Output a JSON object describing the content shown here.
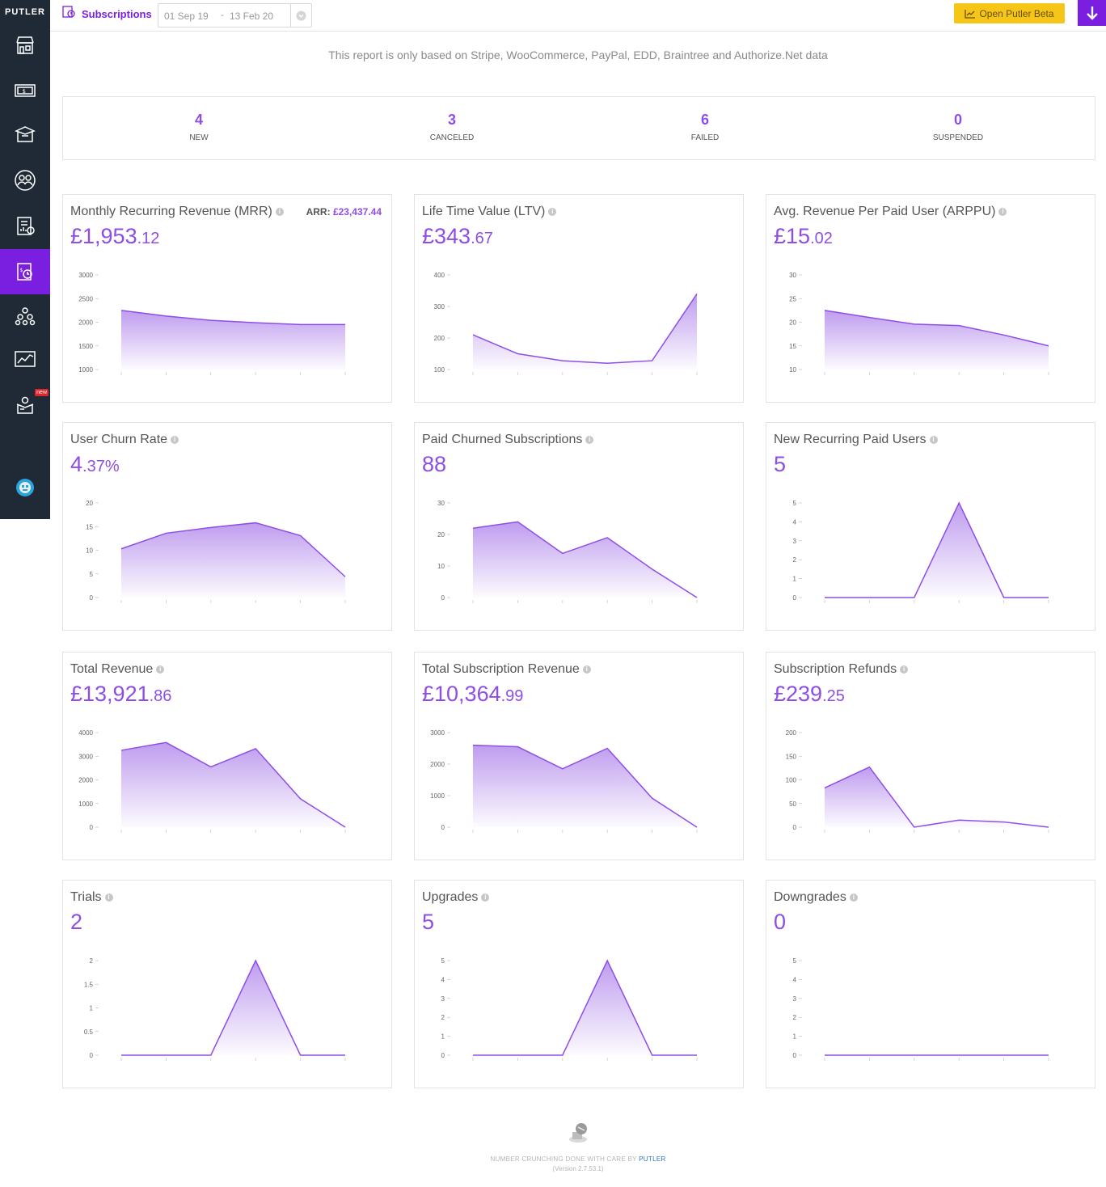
{
  "sidebar": {
    "brand": "PUTLER",
    "items": [
      {
        "icon": "store-icon"
      },
      {
        "icon": "money-icon"
      },
      {
        "icon": "box-icon"
      },
      {
        "icon": "customers-icon"
      },
      {
        "icon": "report-icon"
      },
      {
        "icon": "subscriptions-icon",
        "active": true
      },
      {
        "icon": "affiliates-icon"
      },
      {
        "icon": "insights-icon"
      },
      {
        "icon": "apps-icon",
        "badge": "new"
      }
    ],
    "accent": "#7a1fe0",
    "background": "#1f2a36"
  },
  "topbar": {
    "title": "Subscriptions",
    "date_from": "01 Sep 19",
    "date_sep": "-",
    "date_to": "13 Feb 20",
    "beta_label": "Open Putler Beta"
  },
  "notice": "This report is only based on Stripe, WooCommerce, PayPal, EDD, Braintree and Authorize.Net data",
  "stats": [
    {
      "value": "4",
      "label": "NEW"
    },
    {
      "value": "3",
      "label": "CANCELED"
    },
    {
      "value": "6",
      "label": "FAILED"
    },
    {
      "value": "0",
      "label": "SUSPENDED"
    }
  ],
  "chart_data": [
    {
      "type": "area",
      "title": "Monthly Recurring Revenue (MRR)",
      "value_main": "£1,953",
      "value_dec": ".12",
      "extra_label": "ARR:",
      "extra_value": "£23,437.44",
      "yticks": [
        "3000",
        "2500",
        "2000",
        "1500",
        "1000"
      ],
      "ylim": [
        1000,
        3000
      ],
      "values": [
        2250,
        2130,
        2040,
        1990,
        1950,
        1950
      ]
    },
    {
      "type": "area",
      "title": "Life Time Value (LTV)",
      "value_main": "£343",
      "value_dec": ".67",
      "yticks": [
        "400",
        "300",
        "200",
        "100"
      ],
      "ylim": [
        100,
        400
      ],
      "values": [
        210,
        150,
        128,
        120,
        128,
        340
      ]
    },
    {
      "type": "area",
      "title": "Avg. Revenue Per Paid User (ARPPU)",
      "value_main": "£15",
      "value_dec": ".02",
      "yticks": [
        "30",
        "25",
        "20",
        "15",
        "10"
      ],
      "ylim": [
        10,
        30
      ],
      "values": [
        22.5,
        21,
        19.6,
        19.3,
        17.3,
        15
      ]
    },
    {
      "type": "area",
      "title": "User Churn Rate",
      "value_main": "4",
      "value_dec": ".37%",
      "yticks": [
        "20",
        "15",
        "10",
        "5",
        "0"
      ],
      "ylim": [
        0,
        20
      ],
      "values": [
        10.3,
        13.6,
        14.8,
        15.8,
        13.1,
        4.4
      ]
    },
    {
      "type": "area",
      "title": "Paid Churned Subscriptions",
      "value_main": "88",
      "value_dec": "",
      "yticks": [
        "30",
        "20",
        "10",
        "0"
      ],
      "ylim": [
        0,
        30
      ],
      "values": [
        22,
        24,
        14,
        19,
        9,
        0
      ]
    },
    {
      "type": "area",
      "title": "New Recurring Paid Users",
      "value_main": "5",
      "value_dec": "",
      "yticks": [
        "5",
        "4",
        "3",
        "2",
        "1",
        "0"
      ],
      "ylim": [
        0,
        5
      ],
      "values": [
        0,
        0,
        0,
        5,
        0,
        0
      ]
    },
    {
      "type": "area",
      "title": "Total Revenue",
      "value_main": "£13,921",
      "value_dec": ".86",
      "yticks": [
        "4000",
        "3000",
        "2000",
        "1000",
        "0"
      ],
      "ylim": [
        0,
        4000
      ],
      "values": [
        3250,
        3580,
        2550,
        3320,
        1200,
        0
      ]
    },
    {
      "type": "area",
      "title": "Total Subscription Revenue",
      "value_main": "£10,364",
      "value_dec": ".99",
      "yticks": [
        "3000",
        "2000",
        "1000",
        "0"
      ],
      "ylim": [
        0,
        3000
      ],
      "values": [
        2600,
        2550,
        1850,
        2500,
        920,
        0
      ]
    },
    {
      "type": "area",
      "title": "Subscription Refunds",
      "value_main": "£239",
      "value_dec": ".25",
      "yticks": [
        "200",
        "150",
        "100",
        "50",
        "0"
      ],
      "ylim": [
        0,
        200
      ],
      "values": [
        83,
        127,
        0,
        15,
        11,
        0
      ]
    },
    {
      "type": "area",
      "title": "Trials",
      "value_main": "2",
      "value_dec": "",
      "yticks": [
        "2",
        "1.5",
        "1",
        "0.5",
        "0"
      ],
      "ylim": [
        0,
        2
      ],
      "values": [
        0,
        0,
        0,
        2,
        0,
        0
      ]
    },
    {
      "type": "area",
      "title": "Upgrades",
      "value_main": "5",
      "value_dec": "",
      "yticks": [
        "5",
        "4",
        "3",
        "2",
        "1",
        "0"
      ],
      "ylim": [
        0,
        5
      ],
      "values": [
        0,
        0,
        0,
        5,
        0,
        0
      ]
    },
    {
      "type": "area",
      "title": "Downgrades",
      "value_main": "0",
      "value_dec": "",
      "yticks": [
        "5",
        "4",
        "3",
        "2",
        "1",
        "0"
      ],
      "ylim": [
        0,
        5
      ],
      "values": [
        0,
        0,
        0,
        0,
        0,
        0
      ]
    }
  ],
  "footer": {
    "text": "NUMBER CRUNCHING DONE WITH CARE BY",
    "brand": "PUTLER",
    "version": "(Version 2.7.53.1)"
  },
  "colors": {
    "accent": "#8e4ee6",
    "line": "#8e4ee6",
    "beta": "#f5c518"
  }
}
